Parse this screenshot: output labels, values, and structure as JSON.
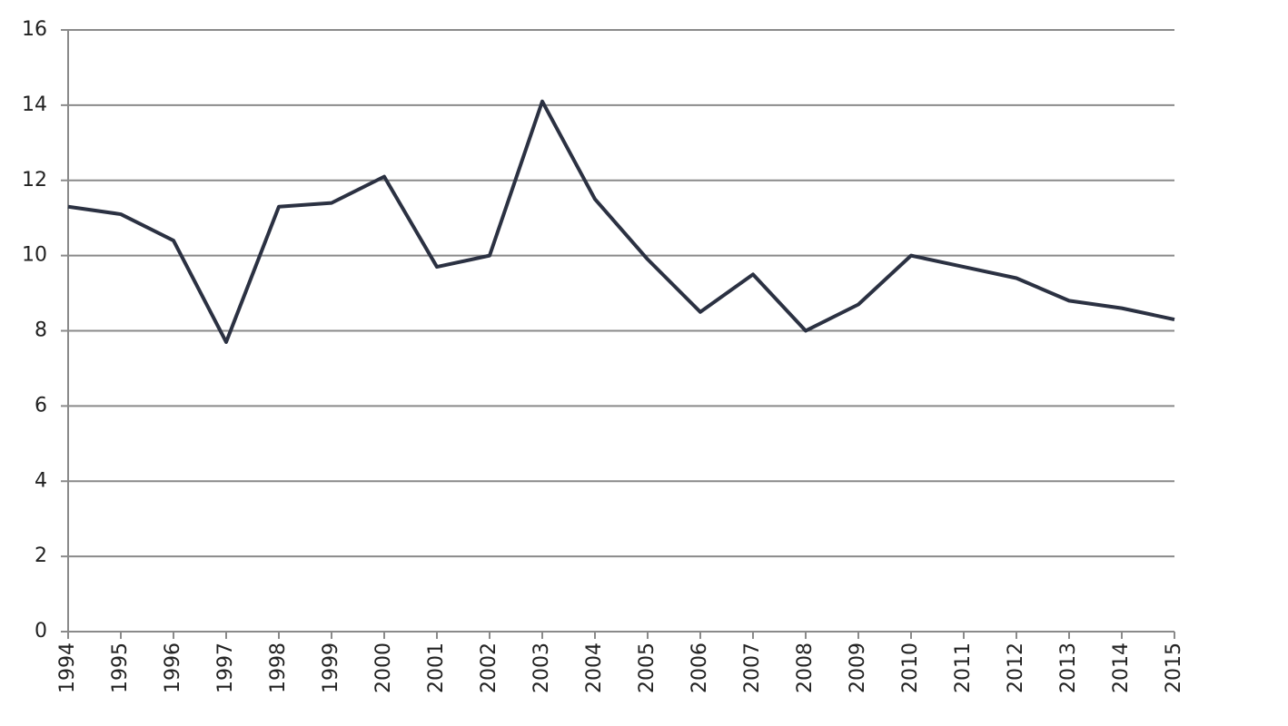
{
  "chart_data": {
    "type": "line",
    "categories": [
      "1994",
      "1995",
      "1996",
      "1997",
      "1998",
      "1999",
      "2000",
      "2001",
      "2002",
      "2003",
      "2004",
      "2005",
      "2006",
      "2007",
      "2008",
      "2009",
      "2010",
      "2011",
      "2012",
      "2013",
      "2014",
      "2015"
    ],
    "values": [
      11.3,
      11.1,
      10.4,
      7.7,
      11.3,
      11.4,
      12.1,
      9.7,
      10.0,
      14.1,
      11.5,
      9.9,
      8.5,
      9.5,
      8.0,
      8.7,
      10.0,
      9.7,
      9.4,
      8.8,
      8.6,
      8.3
    ],
    "color": "#2b3142",
    "ylim": [
      0,
      16
    ],
    "yticks": [
      0,
      2,
      4,
      6,
      8,
      10,
      12,
      14,
      16
    ],
    "grid": true
  }
}
